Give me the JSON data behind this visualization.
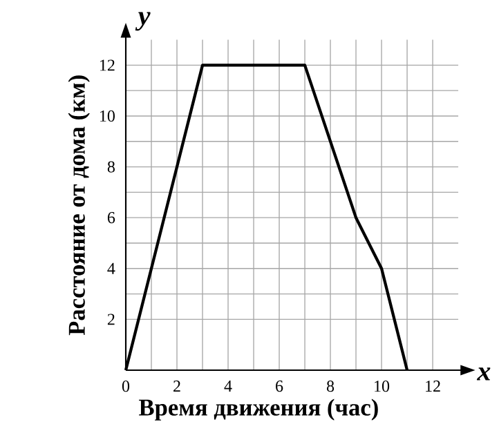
{
  "chart_data": {
    "type": "line",
    "xlabel": "Время движения  (час)",
    "ylabel": "Расстояние от дома (км)",
    "annotations": [
      "x",
      "y"
    ],
    "x": [
      0,
      3,
      7,
      9,
      10,
      11
    ],
    "values": [
      0,
      12,
      12,
      6,
      4,
      0
    ],
    "color": "#000000",
    "xlim": [
      0,
      13
    ],
    "ylim": [
      0,
      13
    ],
    "xticks": [
      0,
      2,
      4,
      6,
      8,
      10,
      12
    ],
    "yticks": [
      2,
      4,
      6,
      8,
      10,
      12
    ],
    "grid": true,
    "marker": "none",
    "line_style": "solid"
  }
}
